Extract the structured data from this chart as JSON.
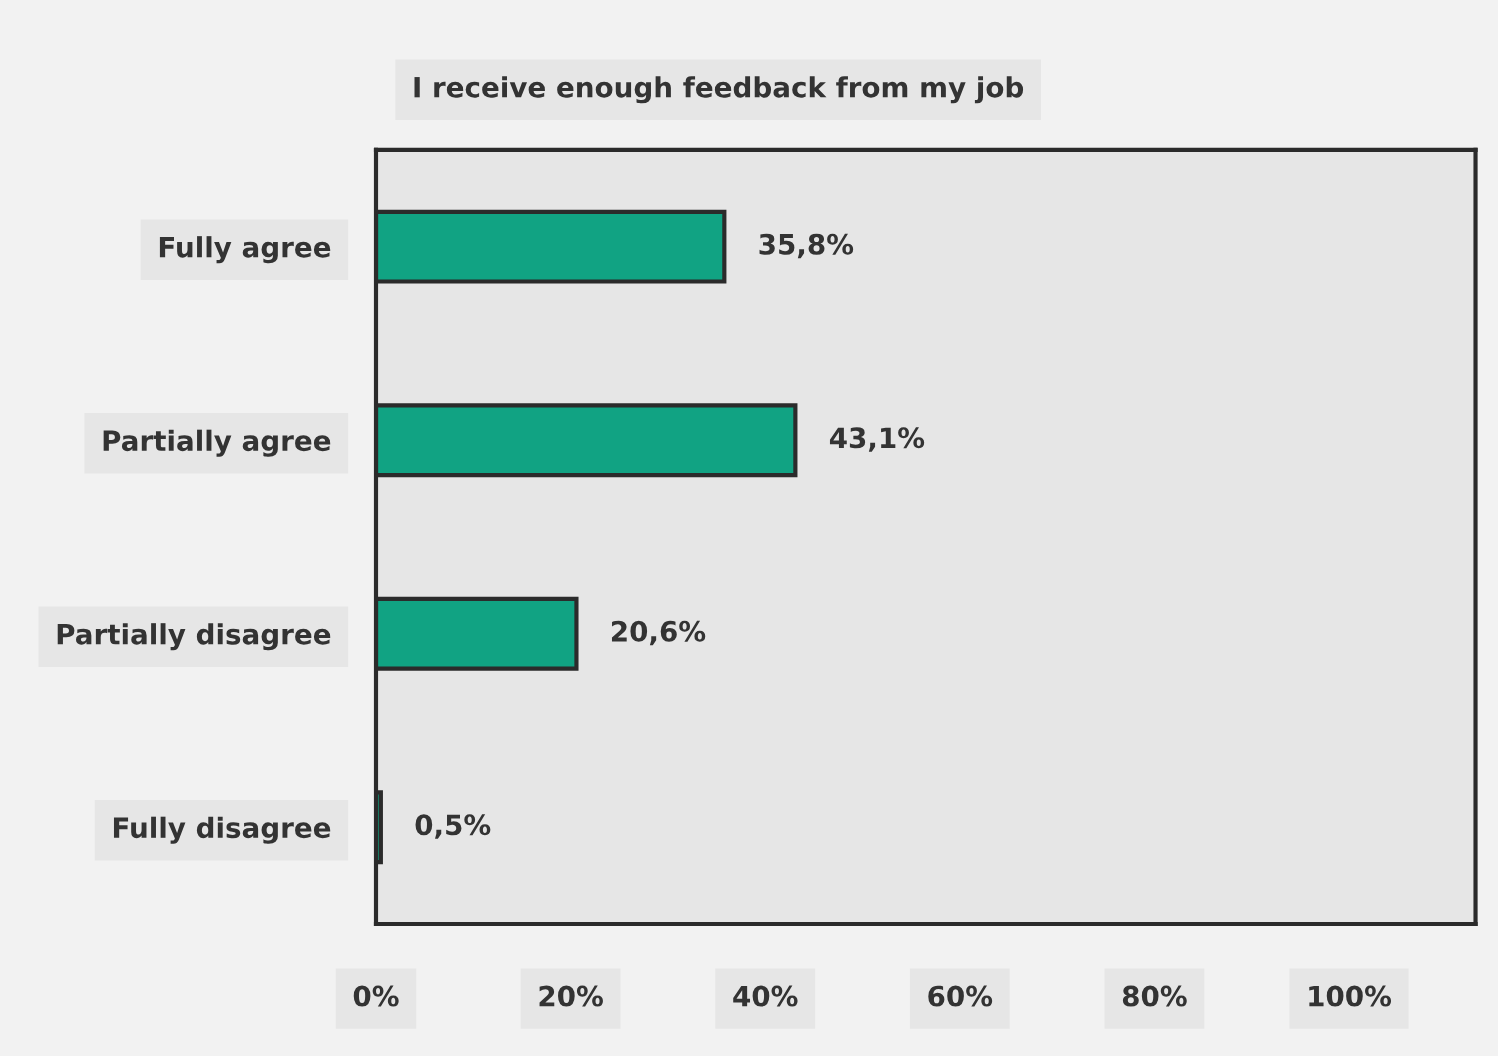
{
  "chart_data": {
    "type": "bar",
    "orientation": "horizontal",
    "title": "I receive enough feedback from my job",
    "categories": [
      "Fully agree",
      "Partially agree",
      "Partially disagree",
      "Fully disagree"
    ],
    "values": [
      35.8,
      43.1,
      20.6,
      0.5
    ],
    "value_labels": [
      "35,8%",
      "43,1%",
      "20,6%",
      "0,5%"
    ],
    "color": "#11a383",
    "xlim": [
      0,
      113
    ],
    "xticks": [
      {
        "value": 0,
        "label": "0%"
      },
      {
        "value": 20,
        "label": "20%"
      },
      {
        "value": 40,
        "label": "40%"
      },
      {
        "value": 60,
        "label": "60%"
      },
      {
        "value": 80,
        "label": "80%"
      },
      {
        "value": 100,
        "label": "100%"
      }
    ],
    "grid": false,
    "legend": false
  }
}
